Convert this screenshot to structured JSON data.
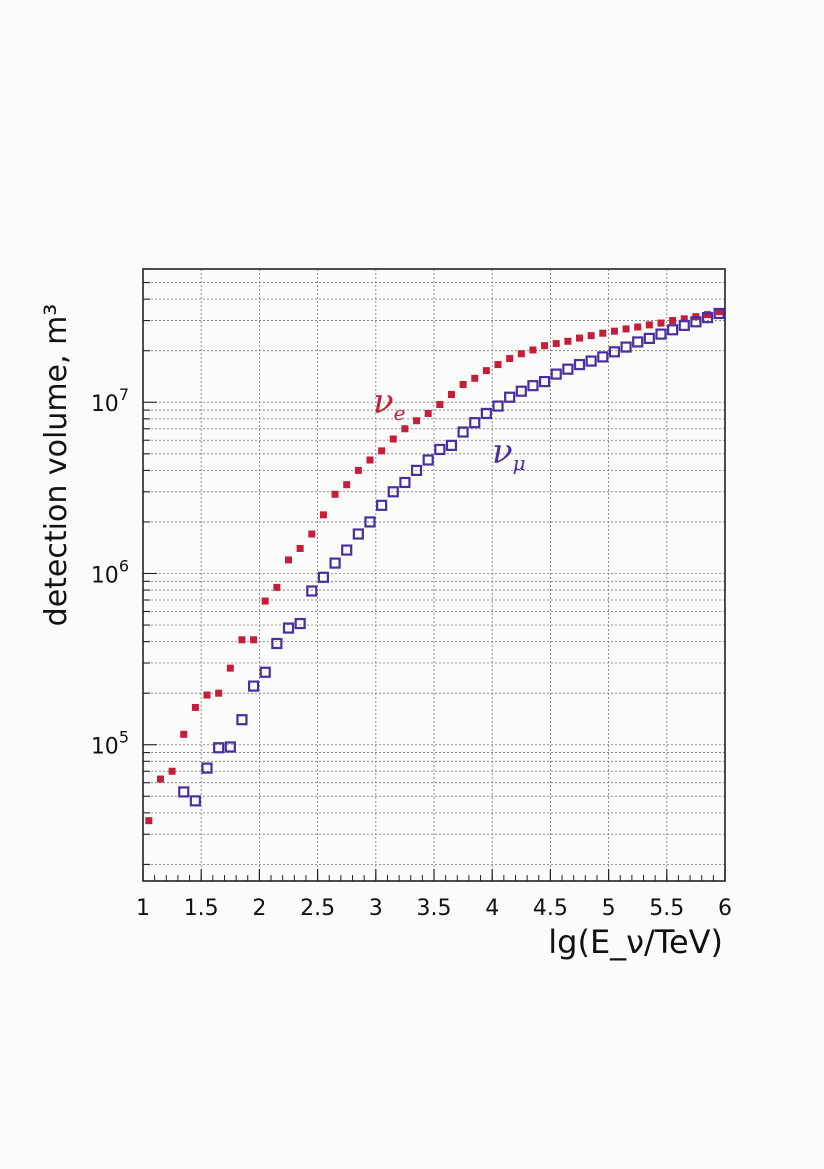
{
  "chart_data": {
    "type": "scatter",
    "title": "",
    "xlabel": "lg(E_ν/TeV)",
    "ylabel": "detection volume, m³",
    "xlim": [
      1,
      6
    ],
    "ylim": [
      16000,
      60000000
    ],
    "yscale": "log",
    "grid": true,
    "x_ticks": [
      1,
      1.5,
      2,
      2.5,
      3,
      3.5,
      4,
      4.5,
      5,
      5.5,
      6
    ],
    "x_tick_labels": [
      "1",
      "1.5",
      "2",
      "2.5",
      "3",
      "3.5",
      "4",
      "4.5",
      "5",
      "5.5",
      "6"
    ],
    "y_ticks": [
      100000,
      1000000,
      10000000
    ],
    "y_tick_labels": [
      {
        "base": "10",
        "exp": "5"
      },
      {
        "base": "10",
        "exp": "6"
      },
      {
        "base": "10",
        "exp": "7"
      }
    ],
    "series": [
      {
        "name": "ν_e",
        "label_main": "ν",
        "label_sub": "e",
        "color": "#c41e3a",
        "marker": "filled-square",
        "x": [
          1.05,
          1.15,
          1.25,
          1.35,
          1.45,
          1.55,
          1.65,
          1.75,
          1.85,
          1.95,
          2.05,
          2.15,
          2.25,
          2.35,
          2.45,
          2.55,
          2.65,
          2.75,
          2.85,
          2.95,
          3.05,
          3.15,
          3.25,
          3.35,
          3.45,
          3.55,
          3.65,
          3.75,
          3.85,
          3.95,
          4.05,
          4.15,
          4.25,
          4.35,
          4.45,
          4.55,
          4.65,
          4.75,
          4.85,
          4.95,
          5.05,
          5.15,
          5.25,
          5.35,
          5.45,
          5.55,
          5.65,
          5.75,
          5.85,
          5.95
        ],
        "y": [
          36000,
          63000,
          70000,
          115000,
          165000,
          195000,
          200000,
          280000,
          410000,
          410000,
          690000,
          830000,
          1200000,
          1400000,
          1700000,
          2200000,
          2900000,
          3300000,
          4000000,
          4600000,
          5200000,
          6100000,
          7000000,
          7800000,
          8600000,
          9700000,
          11100000,
          12700000,
          13800000,
          15300000,
          16600000,
          18000000,
          19200000,
          20200000,
          21400000,
          22000000,
          22700000,
          23700000,
          24500000,
          25300000,
          26000000,
          26800000,
          27500000,
          28300000,
          29000000,
          30000000,
          30700000,
          31600000,
          32500000,
          33800000
        ]
      },
      {
        "name": "ν_μ",
        "label_main": "ν",
        "label_sub": "μ",
        "color": "#4a2fa0",
        "marker": "open-square",
        "x": [
          1.35,
          1.45,
          1.55,
          1.65,
          1.75,
          1.85,
          1.95,
          2.05,
          2.15,
          2.25,
          2.35,
          2.45,
          2.55,
          2.65,
          2.75,
          2.85,
          2.95,
          3.05,
          3.15,
          3.25,
          3.35,
          3.45,
          3.55,
          3.65,
          3.75,
          3.85,
          3.95,
          4.05,
          4.15,
          4.25,
          4.35,
          4.45,
          4.55,
          4.65,
          4.75,
          4.85,
          4.95,
          5.05,
          5.15,
          5.25,
          5.35,
          5.45,
          5.55,
          5.65,
          5.75,
          5.85,
          5.95
        ],
        "y": [
          53000,
          47000,
          73000,
          96000,
          97000,
          140000,
          220000,
          265000,
          390000,
          480000,
          510000,
          790000,
          950000,
          1150000,
          1370000,
          1700000,
          2000000,
          2500000,
          3000000,
          3400000,
          4000000,
          4600000,
          5300000,
          5600000,
          6700000,
          7600000,
          8600000,
          9500000,
          10700000,
          11600000,
          12500000,
          13200000,
          14600000,
          15600000,
          16600000,
          17400000,
          18400000,
          19700000,
          21000000,
          22500000,
          23600000,
          25000000,
          26500000,
          28100000,
          29500000,
          31200000,
          33000000
        ]
      }
    ]
  }
}
